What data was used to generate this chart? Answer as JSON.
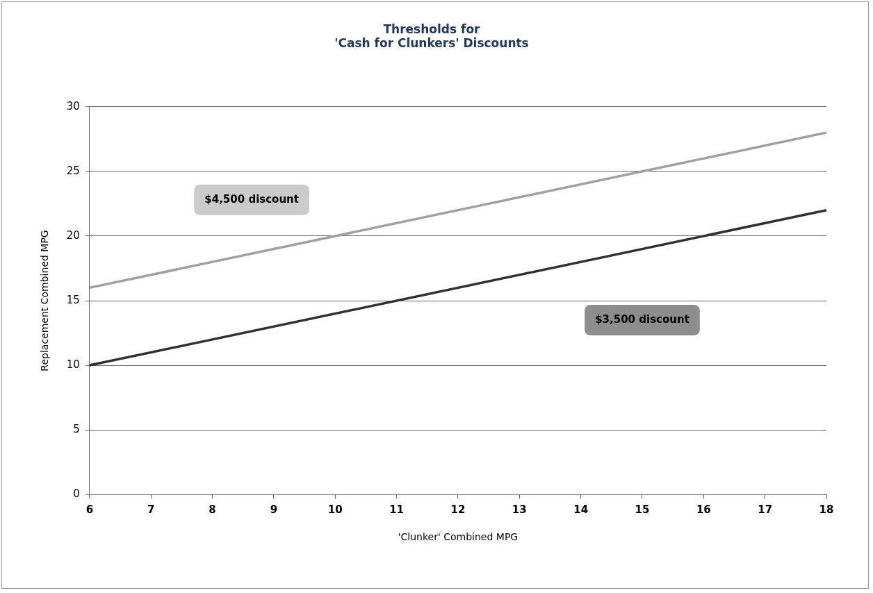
{
  "chart_data": {
    "type": "line",
    "title": "Thresholds for\n'Cash for Clunkers' Discounts",
    "xlabel": "'Clunker' Combined MPG",
    "ylabel": "Replacement Combined MPG",
    "x": [
      6,
      18
    ],
    "series": [
      {
        "name": "$4,500 discount",
        "color": "#a0a0a0",
        "values": [
          16,
          28
        ]
      },
      {
        "name": "$3,500 discount",
        "color": "#303030",
        "values": [
          10,
          22
        ]
      }
    ],
    "xlim": [
      6,
      18
    ],
    "xticks": [
      6,
      7,
      8,
      9,
      10,
      11,
      12,
      13,
      14,
      15,
      16,
      17,
      18
    ],
    "ylim": [
      0,
      30
    ],
    "yticks": [
      0,
      5,
      10,
      15,
      20,
      25,
      30
    ],
    "grid": "y",
    "legend": false,
    "marker": "none",
    "line_style": "solid"
  }
}
